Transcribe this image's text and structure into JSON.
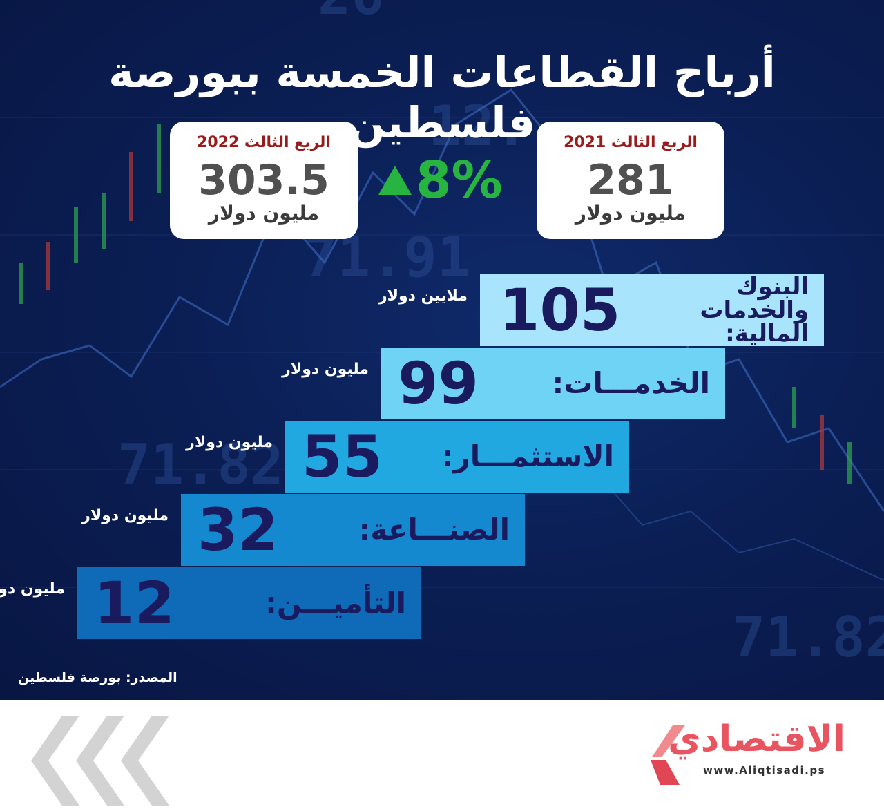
{
  "title": "أرباح القطاعات الخمسة ببورصة فلسطين",
  "period_cards": [
    {
      "quarter": "الربع الثالث 2022",
      "value": "303.5",
      "unit": "مليون دولار"
    },
    {
      "quarter": "الربع الثالث 2021",
      "value": "281",
      "unit": "مليون دولار"
    }
  ],
  "change": {
    "value": "8%",
    "direction": "up",
    "color": "#28b441"
  },
  "chart_data": {
    "type": "bar",
    "categories": [
      "البنوك والخدمات المالية:",
      "الخدمـــات:",
      "الاستثمـــار:",
      "الصنـــاعة:",
      "التأميـــن:"
    ],
    "values": [
      105,
      99,
      55,
      32,
      12
    ],
    "value_labels": [
      "105",
      "99",
      "55",
      "32",
      "12"
    ],
    "units": [
      "ملايين دولار",
      "مليون دولار",
      "مليون دولار",
      "مليون دولار",
      "مليون دولار"
    ],
    "colors": [
      "#a8e4fb",
      "#6fd3f5",
      "#22a8e0",
      "#1489cf",
      "#0f6ab8"
    ]
  },
  "source": "المصدر: بورصة فلسطين",
  "logo": {
    "name": "الاقتصادي",
    "url": "www.Aliqtisadi.ps"
  }
}
